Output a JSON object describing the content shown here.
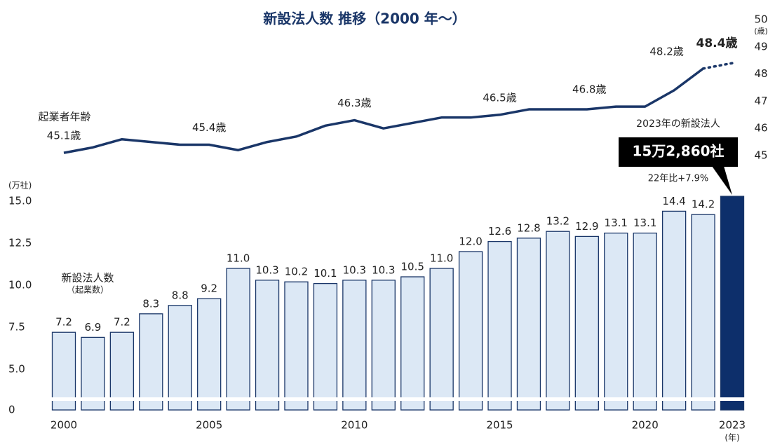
{
  "chart_data": {
    "type": "bar",
    "title": "新設法人数 推移（2000 年～）",
    "categories": [
      "2000",
      null,
      null,
      null,
      null,
      "2005",
      null,
      null,
      null,
      null,
      "2010",
      null,
      null,
      null,
      null,
      "2015",
      null,
      null,
      null,
      null,
      "2020",
      null,
      null,
      "2023"
    ],
    "xlabel": "(年)",
    "ylabel": "(万社)",
    "y2label": "(歳)",
    "ylim": [
      0,
      15
    ],
    "yticks": [
      0,
      {
        "value": 5,
        "label": "5.0"
      },
      7.5,
      {
        "value": 10,
        "label": "10.0"
      },
      12.5,
      {
        "value": 15,
        "label": "15.0"
      }
    ],
    "axis_break": true,
    "y2lim": [
      45,
      50
    ],
    "y2ticks": [
      45,
      46,
      47,
      48,
      49,
      50
    ],
    "series": [
      {
        "name": "新設法人数",
        "name_sub": "（起業数）",
        "type": "bar",
        "color": "#dce8f5",
        "edge_color": "#1a3668",
        "highlight_color": "#0d2f6b",
        "values": [
          7.2,
          6.9,
          7.2,
          8.3,
          8.8,
          9.2,
          11.0,
          10.3,
          10.2,
          10.1,
          10.3,
          10.3,
          10.5,
          11.0,
          12.0,
          12.6,
          12.8,
          13.2,
          12.9,
          13.1,
          13.1,
          14.4,
          14.2,
          15.286
        ],
        "value_labels": [
          "7.2",
          "6.9",
          "7.2",
          "8.3",
          "8.8",
          "9.2",
          "11.0",
          "10.3",
          "10.2",
          "10.1",
          "10.3",
          "10.3",
          "10.5",
          "11.0",
          "12.0",
          "12.6",
          "12.8",
          "13.2",
          "12.9",
          "13.1",
          "13.1",
          "14.4",
          "14.2",
          "15万2,860社"
        ]
      },
      {
        "name": "起業者年齢",
        "type": "line",
        "axis": "y2",
        "color": "#1a3668",
        "dashed_last": true,
        "values": [
          45.1,
          45.3,
          45.6,
          45.5,
          45.4,
          45.4,
          45.2,
          45.5,
          45.7,
          46.1,
          46.3,
          46.0,
          46.2,
          46.4,
          46.4,
          46.5,
          46.7,
          46.7,
          46.7,
          46.8,
          46.8,
          47.4,
          48.2,
          48.4
        ],
        "value_labels": [
          "45.1歳",
          null,
          null,
          null,
          null,
          "45.4歳",
          null,
          null,
          null,
          null,
          "46.3歳",
          null,
          null,
          null,
          null,
          "46.5歳",
          null,
          null,
          null,
          "46.8歳",
          null,
          null,
          "48.2歳",
          "48.4歳"
        ]
      }
    ],
    "annotation": {
      "title": "2023年の新設法人",
      "text": "22年比+7.9%"
    }
  }
}
